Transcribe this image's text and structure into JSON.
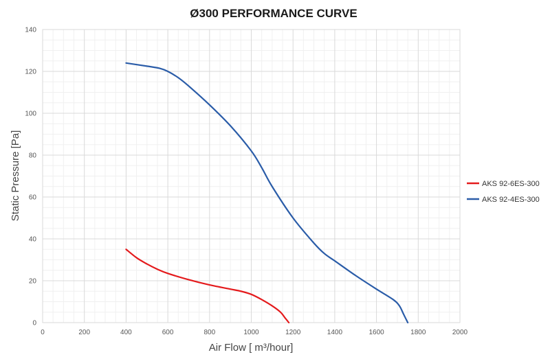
{
  "chart_data": {
    "type": "line",
    "title": "Ø300 PERFORMANCE CURVE",
    "xlabel": "Air Flow [ m³/hour]",
    "ylabel": "Static Pressure [Pa]",
    "xlim": [
      0,
      2000
    ],
    "ylim": [
      0,
      140
    ],
    "xticks": [
      "0",
      "200",
      "400",
      "600",
      "800",
      "1000",
      "1200",
      "1400",
      "1600",
      "1800",
      "2000"
    ],
    "yticks": [
      "0",
      "20",
      "40",
      "60",
      "80",
      "100",
      "120",
      "140"
    ],
    "grid": true,
    "legend": "right",
    "series": [
      {
        "name": "AKS 92-6ES-300",
        "color": "#e41a1c",
        "x": [
          400,
          450,
          500,
          550,
          600,
          700,
          800,
          900,
          950,
          1000,
          1050,
          1100,
          1140,
          1160,
          1180
        ],
        "y": [
          35,
          31,
          28,
          25.5,
          23.5,
          20.5,
          18,
          16,
          15,
          13.5,
          11,
          8,
          5,
          2.5,
          0
        ]
      },
      {
        "name": "AKS 92-4ES-300",
        "color": "#2a5ca8",
        "x": [
          400,
          500,
          560,
          600,
          650,
          700,
          800,
          900,
          1000,
          1050,
          1100,
          1200,
          1300,
          1350,
          1400,
          1500,
          1600,
          1680,
          1710,
          1730,
          1750
        ],
        "y": [
          124,
          122.5,
          121.5,
          120,
          117,
          113,
          104,
          94,
          82,
          74,
          65,
          50,
          38,
          33,
          29.5,
          22.5,
          16,
          11,
          8,
          4,
          0
        ]
      }
    ]
  }
}
